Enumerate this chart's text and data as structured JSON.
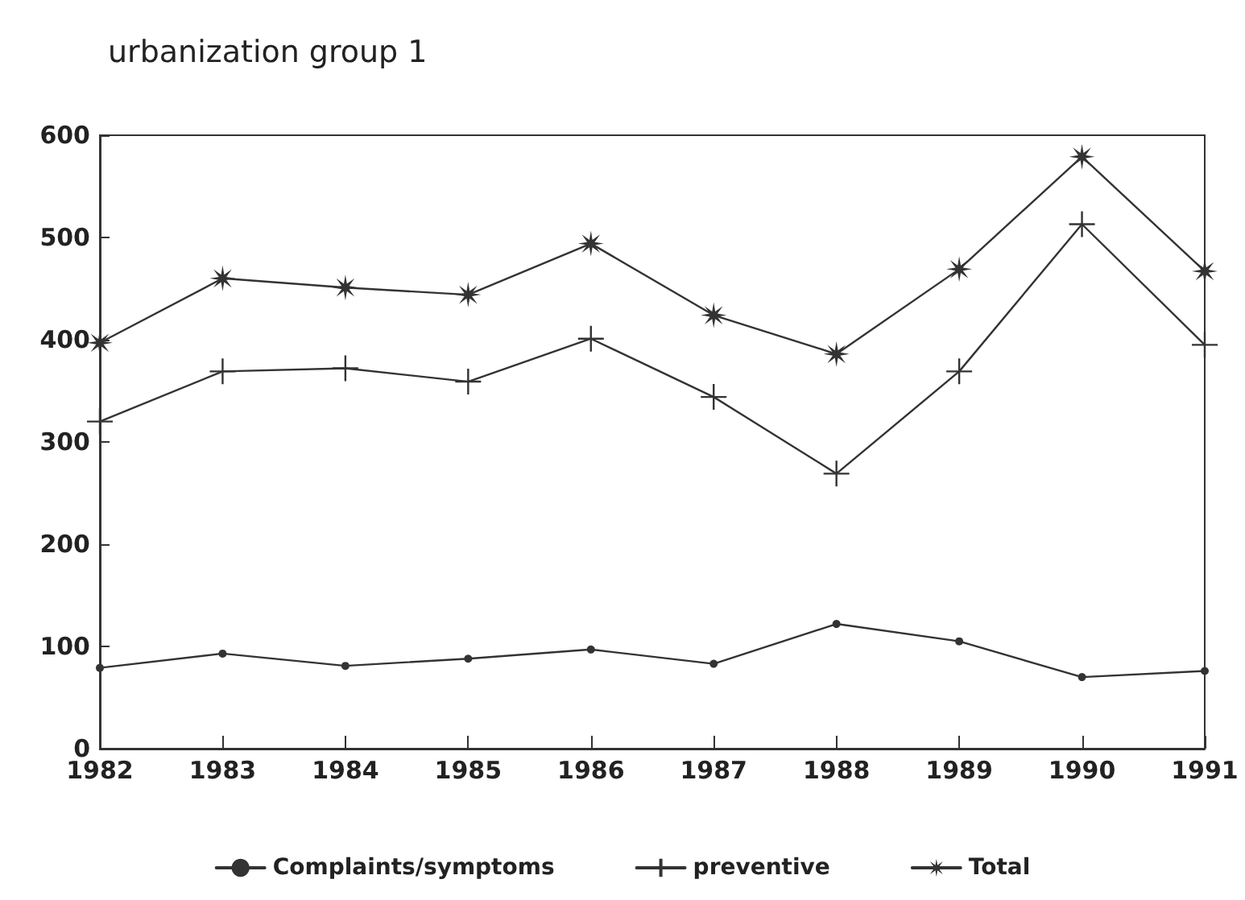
{
  "chart_data": {
    "type": "line",
    "title": "urbanization group 1",
    "categories": [
      "1982",
      "1983",
      "1984",
      "1985",
      "1986",
      "1987",
      "1988",
      "1989",
      "1990",
      "1991"
    ],
    "series": [
      {
        "name": "Complaints/symptoms",
        "color": "#333333",
        "marker": "circle",
        "values": [
          79,
          93,
          81,
          88,
          97,
          83,
          122,
          105,
          70,
          76
        ]
      },
      {
        "name": "preventive",
        "color": "#333333",
        "marker": "cross",
        "values": [
          320,
          369,
          372,
          359,
          401,
          344,
          269,
          369,
          513,
          395
        ]
      },
      {
        "name": "Total",
        "color": "#333333",
        "marker": "star",
        "values": [
          397,
          460,
          451,
          444,
          494,
          424,
          386,
          469,
          579,
          467
        ]
      }
    ],
    "ylim": [
      0,
      600
    ],
    "yticks": [
      0,
      100,
      200,
      300,
      400,
      500,
      600
    ],
    "grid": false,
    "legend": "bottom",
    "line_style": "solid"
  }
}
